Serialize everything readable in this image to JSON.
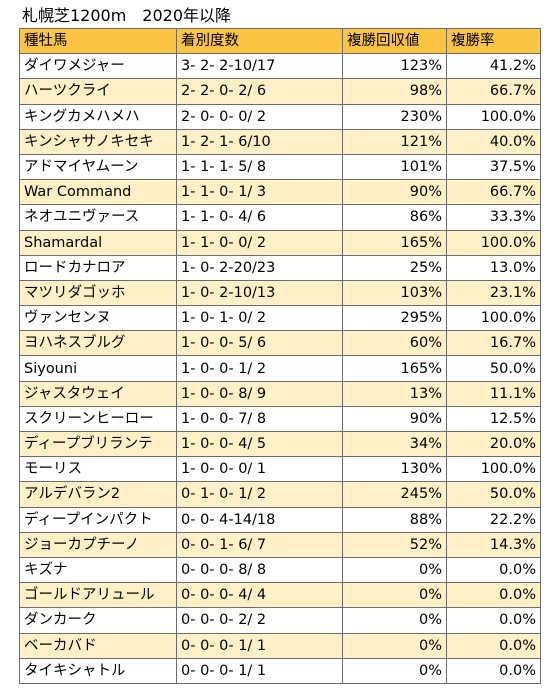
{
  "title": "札幌芝1200m　2020年以降",
  "columns": [
    "種牡馬",
    "着別度数",
    "複勝回収値",
    "複勝率"
  ],
  "rows": [
    {
      "sire": "ダイワメジャー",
      "record": "3- 2- 2-10/17",
      "return": "123%",
      "rate": "41.2%"
    },
    {
      "sire": "ハーツクライ",
      "record": "2- 2- 0- 2/ 6",
      "return": "98%",
      "rate": "66.7%"
    },
    {
      "sire": "キングカメハメハ",
      "record": "2- 0- 0- 0/ 2",
      "return": "230%",
      "rate": "100.0%"
    },
    {
      "sire": "キンシャサノキセキ",
      "record": "1- 2- 1- 6/10",
      "return": "121%",
      "rate": "40.0%"
    },
    {
      "sire": "アドマイヤムーン",
      "record": "1- 1- 1- 5/ 8",
      "return": "101%",
      "rate": "37.5%"
    },
    {
      "sire": "War Command",
      "record": "1- 1- 0- 1/ 3",
      "return": "90%",
      "rate": "66.7%"
    },
    {
      "sire": "ネオユニヴァース",
      "record": "1- 1- 0- 4/ 6",
      "return": "86%",
      "rate": "33.3%"
    },
    {
      "sire": "Shamardal",
      "record": "1- 1- 0- 0/ 2",
      "return": "165%",
      "rate": "100.0%"
    },
    {
      "sire": "ロードカナロア",
      "record": "1- 0- 2-20/23",
      "return": "25%",
      "rate": "13.0%"
    },
    {
      "sire": "マツリダゴッホ",
      "record": "1- 0- 2-10/13",
      "return": "103%",
      "rate": "23.1%"
    },
    {
      "sire": "ヴァンセンヌ",
      "record": "1- 0- 1- 0/ 2",
      "return": "295%",
      "rate": "100.0%"
    },
    {
      "sire": "ヨハネスブルグ",
      "record": "1- 0- 0- 5/ 6",
      "return": "60%",
      "rate": "16.7%"
    },
    {
      "sire": "Siyouni",
      "record": "1- 0- 0- 1/ 2",
      "return": "165%",
      "rate": "50.0%"
    },
    {
      "sire": "ジャスタウェイ",
      "record": "1- 0- 0- 8/ 9",
      "return": "13%",
      "rate": "11.1%"
    },
    {
      "sire": "スクリーンヒーロー",
      "record": "1- 0- 0- 7/ 8",
      "return": "90%",
      "rate": "12.5%"
    },
    {
      "sire": "ディープブリランテ",
      "record": "1- 0- 0- 4/ 5",
      "return": "34%",
      "rate": "20.0%"
    },
    {
      "sire": "モーリス",
      "record": "1- 0- 0- 0/ 1",
      "return": "130%",
      "rate": "100.0%"
    },
    {
      "sire": "アルデバラン2",
      "record": "0- 1- 0- 1/ 2",
      "return": "245%",
      "rate": "50.0%"
    },
    {
      "sire": "ディープインパクト",
      "record": "0- 0- 4-14/18",
      "return": "88%",
      "rate": "22.2%"
    },
    {
      "sire": "ジョーカプチーノ",
      "record": "0- 0- 1- 6/ 7",
      "return": "52%",
      "rate": "14.3%"
    },
    {
      "sire": "キズナ",
      "record": "0- 0- 0- 8/ 8",
      "return": "0%",
      "rate": "0.0%"
    },
    {
      "sire": "ゴールドアリュール",
      "record": "0- 0- 0- 4/ 4",
      "return": "0%",
      "rate": "0.0%"
    },
    {
      "sire": "ダンカーク",
      "record": "0- 0- 0- 2/ 2",
      "return": "0%",
      "rate": "0.0%"
    },
    {
      "sire": "ベーカバド",
      "record": "0- 0- 0- 1/ 1",
      "return": "0%",
      "rate": "0.0%"
    },
    {
      "sire": "タイキシャトル",
      "record": "0- 0- 0- 1/ 1",
      "return": "0%",
      "rate": "0.0%"
    }
  ],
  "colors": {
    "header": "#fbc543",
    "stripe": "#fff0c5",
    "border": "#6b6b6b"
  }
}
